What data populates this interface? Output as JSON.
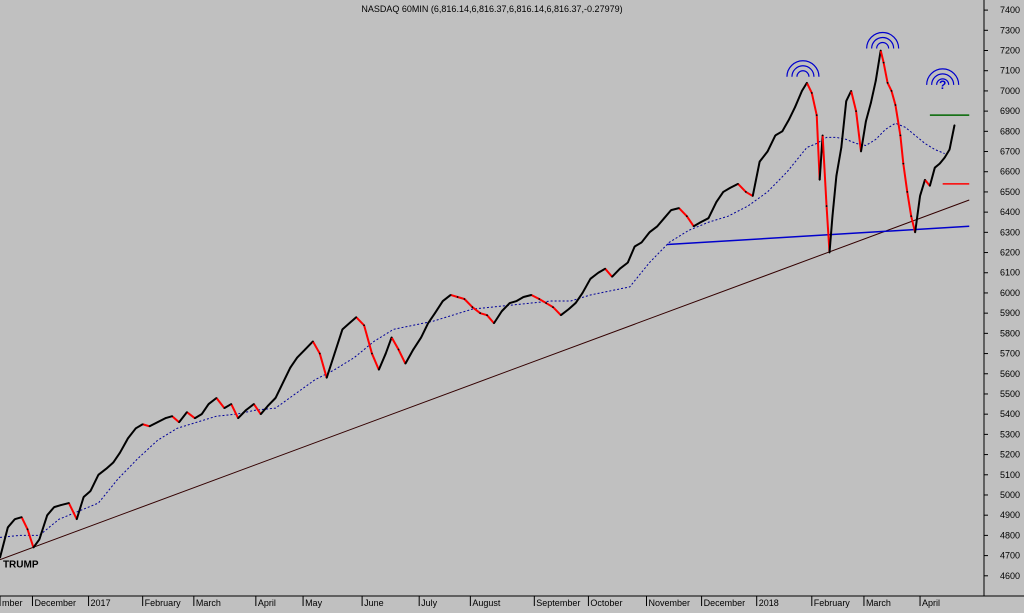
{
  "chart_data": {
    "type": "line",
    "title": "NASDAQ 60MIN (6,816.14,6,816.37,6,816.14,6,816.37,-0.27979)",
    "ylim": [
      4500,
      7450
    ],
    "y_ticks": [
      4600,
      4700,
      4800,
      4900,
      5000,
      5100,
      5200,
      5300,
      5400,
      5500,
      5600,
      5700,
      5800,
      5900,
      6000,
      6100,
      6200,
      6300,
      6400,
      6500,
      6600,
      6700,
      6800,
      6900,
      7000,
      7100,
      7200,
      7300,
      7400
    ],
    "x_domain": [
      0,
      1000
    ],
    "x_ticks": [
      {
        "label": "mber",
        "x": 0
      },
      {
        "label": "December",
        "x": 33
      },
      {
        "label": "2017",
        "x": 90
      },
      {
        "label": "February",
        "x": 145
      },
      {
        "label": "March",
        "x": 197
      },
      {
        "label": "April",
        "x": 260
      },
      {
        "label": "May",
        "x": 308
      },
      {
        "label": "June",
        "x": 368
      },
      {
        "label": "July",
        "x": 426
      },
      {
        "label": "August",
        "x": 478
      },
      {
        "label": "September",
        "x": 543
      },
      {
        "label": "October",
        "x": 598
      },
      {
        "label": "November",
        "x": 657
      },
      {
        "label": "December",
        "x": 713
      },
      {
        "label": "2018",
        "x": 769
      },
      {
        "label": "February",
        "x": 825
      },
      {
        "label": "March",
        "x": 878
      },
      {
        "label": "April",
        "x": 935
      }
    ],
    "series": [
      {
        "name": "",
        "x": [
          0,
          8,
          15,
          22,
          28,
          34,
          40,
          48,
          55,
          62,
          70,
          78,
          85,
          92,
          100,
          108,
          115,
          122,
          130,
          138,
          145,
          152,
          160,
          168,
          175,
          182,
          190,
          198,
          205,
          212,
          220,
          228,
          235,
          242,
          250,
          258,
          265,
          272,
          280,
          288,
          295,
          302,
          310,
          318,
          325,
          332,
          340,
          348,
          355,
          362,
          370,
          378,
          385,
          392,
          398,
          405,
          412,
          420,
          428,
          435,
          442,
          450,
          458,
          465,
          472,
          480,
          488,
          495,
          502,
          510,
          518,
          525,
          532,
          540,
          548,
          555,
          562,
          570,
          578,
          585,
          592,
          600,
          608,
          615,
          622,
          630,
          638,
          645,
          652,
          660,
          668,
          675,
          682,
          690,
          698,
          705,
          712,
          720,
          728,
          735,
          742,
          750,
          758,
          765,
          772,
          780,
          788,
          795,
          802,
          808,
          815,
          820,
          825,
          830,
          833,
          836,
          840,
          843,
          846,
          850,
          855,
          860,
          865,
          870,
          875,
          880,
          885,
          890,
          895,
          898,
          902,
          906,
          910,
          915,
          918,
          922,
          926,
          930,
          935,
          940,
          945,
          950,
          955,
          960,
          965,
          970
        ],
        "values": [
          4690,
          4840,
          4880,
          4890,
          4830,
          4740,
          4780,
          4900,
          4940,
          4950,
          4960,
          4880,
          4990,
          5020,
          5100,
          5130,
          5160,
          5210,
          5280,
          5330,
          5350,
          5340,
          5360,
          5380,
          5390,
          5360,
          5410,
          5380,
          5400,
          5450,
          5480,
          5430,
          5450,
          5380,
          5420,
          5450,
          5400,
          5440,
          5480,
          5560,
          5630,
          5680,
          5720,
          5760,
          5700,
          5580,
          5700,
          5820,
          5850,
          5880,
          5840,
          5700,
          5620,
          5700,
          5780,
          5720,
          5650,
          5720,
          5780,
          5850,
          5900,
          5960,
          5990,
          5980,
          5970,
          5930,
          5900,
          5890,
          5850,
          5910,
          5950,
          5960,
          5980,
          5990,
          5970,
          5950,
          5930,
          5890,
          5920,
          5950,
          6000,
          6070,
          6100,
          6120,
          6080,
          6120,
          6150,
          6230,
          6250,
          6300,
          6330,
          6370,
          6410,
          6420,
          6380,
          6330,
          6350,
          6370,
          6450,
          6500,
          6520,
          6540,
          6500,
          6480,
          6650,
          6700,
          6780,
          6800,
          6860,
          6920,
          7000,
          7040,
          6990,
          6880,
          6560,
          6780,
          6430,
          6200,
          6380,
          6580,
          6720,
          6950,
          7000,
          6900,
          6700,
          6850,
          6940,
          7050,
          7200,
          7140,
          7040,
          7000,
          6930,
          6780,
          6640,
          6500,
          6380,
          6300,
          6480,
          6560,
          6530,
          6620,
          6640,
          6670,
          6710,
          6830
        ]
      },
      {
        "name": "",
        "x": [
          0,
          20,
          40,
          60,
          80,
          100,
          120,
          140,
          160,
          180,
          200,
          220,
          240,
          260,
          280,
          300,
          320,
          340,
          360,
          380,
          400,
          420,
          440,
          460,
          480,
          500,
          520,
          540,
          560,
          580,
          600,
          620,
          640,
          660,
          680,
          700,
          720,
          740,
          760,
          780,
          800,
          820,
          830,
          840,
          850,
          860,
          870,
          880,
          890,
          900,
          910,
          920,
          930,
          940,
          950,
          960
        ],
        "values": [
          4790,
          4800,
          4800,
          4880,
          4920,
          4960,
          5080,
          5180,
          5270,
          5330,
          5360,
          5390,
          5400,
          5420,
          5430,
          5500,
          5570,
          5620,
          5680,
          5760,
          5820,
          5840,
          5860,
          5890,
          5920,
          5930,
          5940,
          5950,
          5960,
          5960,
          5990,
          6010,
          6030,
          6150,
          6250,
          6310,
          6350,
          6380,
          6430,
          6500,
          6600,
          6720,
          6740,
          6770,
          6770,
          6760,
          6740,
          6730,
          6760,
          6810,
          6840,
          6820,
          6780,
          6740,
          6710,
          6690
        ]
      }
    ],
    "trendlines": [
      {
        "color": "#330000",
        "x": [
          0,
          985
        ],
        "y": [
          4680,
          6460
        ]
      },
      {
        "color": "#0000cc",
        "x": [
          678,
          985
        ],
        "y": [
          6240,
          6330
        ]
      },
      {
        "color": "#006600",
        "x": [
          945,
          985
        ],
        "y": [
          6880,
          6880
        ]
      },
      {
        "color": "#ff0000",
        "x": [
          958,
          985
        ],
        "y": [
          6540,
          6540
        ]
      }
    ],
    "annotations": [
      {
        "text": "TRUMP",
        "x": 3,
        "y": 4640,
        "color": "#000000"
      },
      {
        "text": "?",
        "x": 958,
        "y": 7010,
        "color": "#0000cc"
      }
    ],
    "arc_marks": [
      {
        "x": 816,
        "y": 7070
      },
      {
        "x": 897,
        "y": 7210
      },
      {
        "x": 958,
        "y": 7030
      }
    ],
    "colors": {
      "background": "#c0c0c0",
      "price_up": "#000000",
      "price_down": "#ff0000",
      "moving_average": "#000099",
      "arc": "#0000cc"
    },
    "grid": false
  }
}
